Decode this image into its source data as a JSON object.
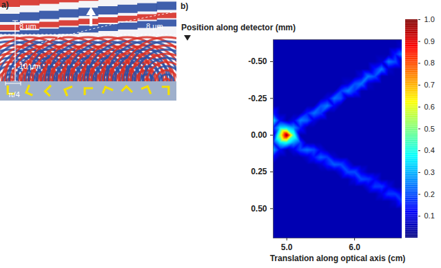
{
  "panel_a": {
    "label": "a)",
    "annotations": [
      "8 µm",
      "10 µm",
      "8 µm",
      "π/4"
    ]
  },
  "chart_data": {
    "type": "heatmap",
    "panel_label": "b)",
    "xlabel": "Translation along optical axis (cm)",
    "ylabel": "Position along detector (mm)",
    "xlim": [
      4.8,
      6.7
    ],
    "ylim": [
      0.7,
      -0.65
    ],
    "xticks": [
      {
        "value": 5,
        "label": "5.0"
      },
      {
        "value": 6,
        "label": "6.0"
      }
    ],
    "yticks": [
      {
        "value": -0.5,
        "label": "-0.50"
      },
      {
        "value": -0.25,
        "label": "-0.25"
      },
      {
        "value": 0,
        "label": "0.00"
      },
      {
        "value": 0.25,
        "label": "0.25"
      },
      {
        "value": 0.5,
        "label": "0.50"
      }
    ],
    "x": [
      4.8,
      4.9,
      5.0,
      5.1,
      5.2,
      5.3,
      5.4,
      5.5,
      5.6,
      5.7,
      5.8,
      5.9,
      6.0,
      6.1,
      6.2,
      6.3,
      6.4,
      6.5,
      6.6,
      6.7
    ],
    "y": [
      -0.65,
      -0.6,
      -0.55,
      -0.5,
      -0.45,
      -0.4,
      -0.35,
      -0.3,
      -0.25,
      -0.2,
      -0.15,
      -0.1,
      -0.05,
      0,
      0.05,
      0.1,
      0.15,
      0.2,
      0.25,
      0.3,
      0.35,
      0.4,
      0.45,
      0.5,
      0.55,
      0.6,
      0.65,
      0.7
    ],
    "z": [
      [
        0.05,
        0.05,
        0.05,
        0.05,
        0.05,
        0.05,
        0.05,
        0.05,
        0.05,
        0.05,
        0.15,
        0.35,
        0.15,
        0.05,
        0.15,
        0.3,
        0.12,
        0.05,
        0.05,
        0.05,
        0.05,
        0.05,
        0.05,
        0.05,
        0.05,
        0.05,
        0.05,
        0.05
      ],
      [
        0.05,
        0.05,
        0.05,
        0.05,
        0.05,
        0.05,
        0.05,
        0.05,
        0.05,
        0.05,
        0.05,
        0.12,
        0.35,
        0.55,
        0.35,
        0.12,
        0.05,
        0.05,
        0.05,
        0.05,
        0.05,
        0.05,
        0.05,
        0.05,
        0.05,
        0.05,
        0.05,
        0.05
      ],
      [
        0.05,
        0.05,
        0.05,
        0.05,
        0.05,
        0.05,
        0.05,
        0.05,
        0.05,
        0.05,
        0.05,
        0.05,
        0.35,
        1,
        0.4,
        0.05,
        0.05,
        0.05,
        0.05,
        0.05,
        0.05,
        0.05,
        0.05,
        0.05,
        0.05,
        0.05,
        0.05,
        0.05
      ],
      [
        0.05,
        0.05,
        0.05,
        0.05,
        0.05,
        0.05,
        0.05,
        0.05,
        0.05,
        0.05,
        0.05,
        0.1,
        0.28,
        0.45,
        0.28,
        0.1,
        0.05,
        0.05,
        0.05,
        0.05,
        0.05,
        0.05,
        0.05,
        0.05,
        0.05,
        0.05,
        0.05,
        0.05
      ],
      [
        0.05,
        0.05,
        0.05,
        0.05,
        0.05,
        0.05,
        0.05,
        0.05,
        0.05,
        0.05,
        0.05,
        0.25,
        0.15,
        0.05,
        0.18,
        0.2,
        0.05,
        0.05,
        0.05,
        0.05,
        0.05,
        0.05,
        0.05,
        0.05,
        0.05,
        0.05,
        0.05,
        0.05
      ],
      [
        0.05,
        0.05,
        0.05,
        0.05,
        0.05,
        0.05,
        0.05,
        0.05,
        0.05,
        0.05,
        0.15,
        0.22,
        0.05,
        0.05,
        0.05,
        0.24,
        0.08,
        0.05,
        0.05,
        0.05,
        0.05,
        0.05,
        0.05,
        0.05,
        0.05,
        0.05,
        0.05,
        0.05
      ],
      [
        0.05,
        0.05,
        0.05,
        0.05,
        0.05,
        0.05,
        0.05,
        0.05,
        0.05,
        0.05,
        0.24,
        0.1,
        0.05,
        0.05,
        0.05,
        0.2,
        0.14,
        0.05,
        0.05,
        0.05,
        0.05,
        0.05,
        0.05,
        0.05,
        0.05,
        0.05,
        0.05,
        0.05
      ],
      [
        0.05,
        0.05,
        0.05,
        0.05,
        0.05,
        0.05,
        0.05,
        0.05,
        0.05,
        0.2,
        0.18,
        0.05,
        0.05,
        0.05,
        0.05,
        0.1,
        0.22,
        0.08,
        0.05,
        0.05,
        0.05,
        0.05,
        0.05,
        0.05,
        0.05,
        0.05,
        0.05,
        0.05
      ],
      [
        0.05,
        0.05,
        0.05,
        0.05,
        0.05,
        0.05,
        0.05,
        0.05,
        0.1,
        0.25,
        0.05,
        0.05,
        0.05,
        0.05,
        0.05,
        0.05,
        0.18,
        0.15,
        0.05,
        0.05,
        0.05,
        0.05,
        0.05,
        0.05,
        0.05,
        0.05,
        0.05,
        0.05
      ],
      [
        0.05,
        0.05,
        0.05,
        0.05,
        0.05,
        0.05,
        0.05,
        0.05,
        0.24,
        0.12,
        0.05,
        0.05,
        0.05,
        0.05,
        0.05,
        0.05,
        0.08,
        0.22,
        0.05,
        0.05,
        0.05,
        0.05,
        0.05,
        0.05,
        0.05,
        0.05,
        0.05,
        0.05
      ],
      [
        0.05,
        0.05,
        0.05,
        0.05,
        0.05,
        0.05,
        0.05,
        0.18,
        0.2,
        0.05,
        0.05,
        0.05,
        0.05,
        0.05,
        0.05,
        0.05,
        0.05,
        0.2,
        0.1,
        0.05,
        0.05,
        0.05,
        0.05,
        0.05,
        0.05,
        0.05,
        0.05,
        0.05
      ],
      [
        0.05,
        0.05,
        0.05,
        0.05,
        0.05,
        0.05,
        0.08,
        0.25,
        0.05,
        0.05,
        0.05,
        0.05,
        0.05,
        0.05,
        0.05,
        0.05,
        0.05,
        0.12,
        0.2,
        0.05,
        0.05,
        0.05,
        0.05,
        0.05,
        0.05,
        0.05,
        0.05,
        0.05
      ],
      [
        0.05,
        0.05,
        0.05,
        0.05,
        0.05,
        0.05,
        0.2,
        0.17,
        0.05,
        0.05,
        0.05,
        0.05,
        0.05,
        0.05,
        0.05,
        0.05,
        0.05,
        0.05,
        0.2,
        0.1,
        0.05,
        0.05,
        0.05,
        0.05,
        0.05,
        0.05,
        0.05,
        0.05
      ],
      [
        0.05,
        0.05,
        0.05,
        0.05,
        0.05,
        0.1,
        0.24,
        0.05,
        0.05,
        0.05,
        0.05,
        0.05,
        0.05,
        0.05,
        0.05,
        0.05,
        0.05,
        0.05,
        0.1,
        0.2,
        0.05,
        0.05,
        0.05,
        0.05,
        0.05,
        0.05,
        0.05,
        0.05
      ],
      [
        0.05,
        0.05,
        0.05,
        0.05,
        0.05,
        0.25,
        0.08,
        0.05,
        0.05,
        0.05,
        0.05,
        0.05,
        0.05,
        0.05,
        0.05,
        0.05,
        0.05,
        0.05,
        0.05,
        0.18,
        0.1,
        0.05,
        0.05,
        0.05,
        0.05,
        0.05,
        0.05,
        0.05
      ],
      [
        0.05,
        0.05,
        0.05,
        0.05,
        0.15,
        0.2,
        0.05,
        0.05,
        0.05,
        0.05,
        0.05,
        0.05,
        0.05,
        0.05,
        0.05,
        0.05,
        0.05,
        0.05,
        0.05,
        0.12,
        0.18,
        0.05,
        0.05,
        0.05,
        0.05,
        0.05,
        0.05,
        0.05
      ],
      [
        0.05,
        0.05,
        0.05,
        0.08,
        0.25,
        0.05,
        0.05,
        0.05,
        0.05,
        0.05,
        0.05,
        0.05,
        0.05,
        0.05,
        0.05,
        0.05,
        0.05,
        0.05,
        0.05,
        0.05,
        0.18,
        0.1,
        0.05,
        0.05,
        0.05,
        0.05,
        0.05,
        0.05
      ],
      [
        0.05,
        0.05,
        0.05,
        0.25,
        0.08,
        0.05,
        0.05,
        0.05,
        0.05,
        0.05,
        0.05,
        0.05,
        0.05,
        0.05,
        0.05,
        0.05,
        0.05,
        0.05,
        0.05,
        0.05,
        0.1,
        0.18,
        0.05,
        0.05,
        0.05,
        0.05,
        0.05,
        0.05
      ],
      [
        0.05,
        0.05,
        0.15,
        0.2,
        0.05,
        0.05,
        0.05,
        0.05,
        0.05,
        0.05,
        0.05,
        0.05,
        0.05,
        0.05,
        0.05,
        0.05,
        0.05,
        0.05,
        0.05,
        0.05,
        0.05,
        0.18,
        0.08,
        0.05,
        0.05,
        0.05,
        0.05,
        0.05
      ],
      [
        0.05,
        0.08,
        0.25,
        0.05,
        0.05,
        0.05,
        0.05,
        0.05,
        0.05,
        0.05,
        0.05,
        0.05,
        0.05,
        0.05,
        0.05,
        0.05,
        0.05,
        0.05,
        0.05,
        0.05,
        0.05,
        0.12,
        0.18,
        0.05,
        0.05,
        0.05,
        0.05,
        0.05
      ]
    ],
    "colorbar": {
      "range": [
        0,
        1
      ],
      "ticks": [
        0.1,
        0.2,
        0.3,
        0.4,
        0.5,
        0.6,
        0.7,
        0.8,
        0.9,
        {
          "value": 1,
          "label": "1.0"
        }
      ]
    }
  }
}
